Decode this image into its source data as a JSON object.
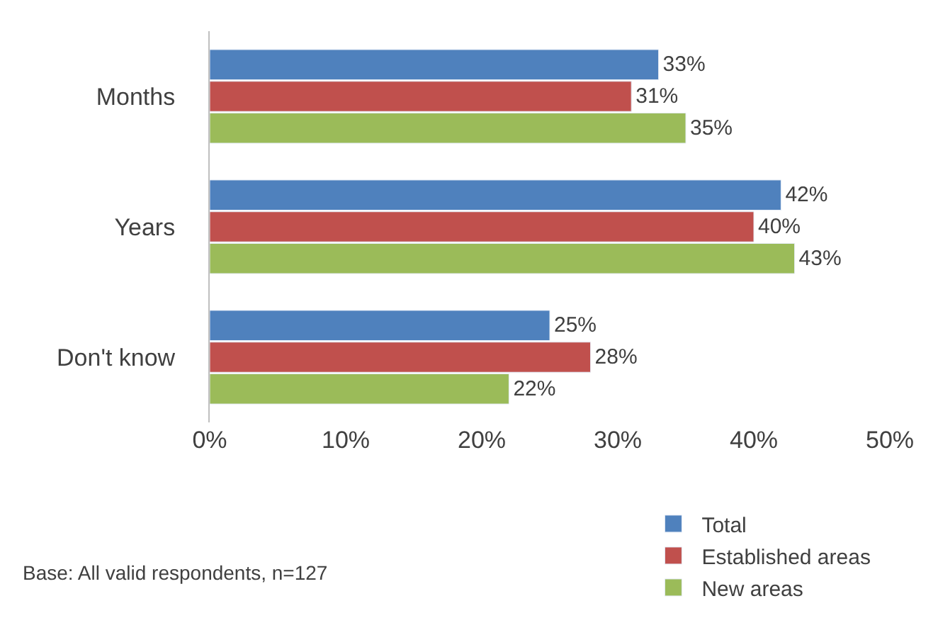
{
  "chart_data": {
    "type": "bar",
    "orientation": "horizontal",
    "categories": [
      "Months",
      "Years",
      "Don't know"
    ],
    "series": [
      {
        "name": "Total",
        "color": "#4f81bd",
        "values": [
          33,
          42,
          25
        ],
        "value_labels": [
          "33%",
          "42%",
          "25%"
        ]
      },
      {
        "name": "Established areas",
        "color": "#c0504d",
        "values": [
          31,
          40,
          28
        ],
        "value_labels": [
          "31%",
          "40%",
          "28%"
        ]
      },
      {
        "name": "New areas",
        "color": "#9bbb59",
        "values": [
          35,
          43,
          22
        ],
        "value_labels": [
          "35%",
          "43%",
          "22%"
        ]
      }
    ],
    "xlim": [
      0,
      50
    ],
    "xticks": [
      {
        "value": 0,
        "label": "0%"
      },
      {
        "value": 10,
        "label": "10%"
      },
      {
        "value": 20,
        "label": "20%"
      },
      {
        "value": 30,
        "label": "30%"
      },
      {
        "value": 40,
        "label": "40%"
      },
      {
        "value": 50,
        "label": "50%"
      }
    ],
    "legend": "bottom right",
    "annotations": [
      "Base: All valid respondents, n=127"
    ]
  }
}
